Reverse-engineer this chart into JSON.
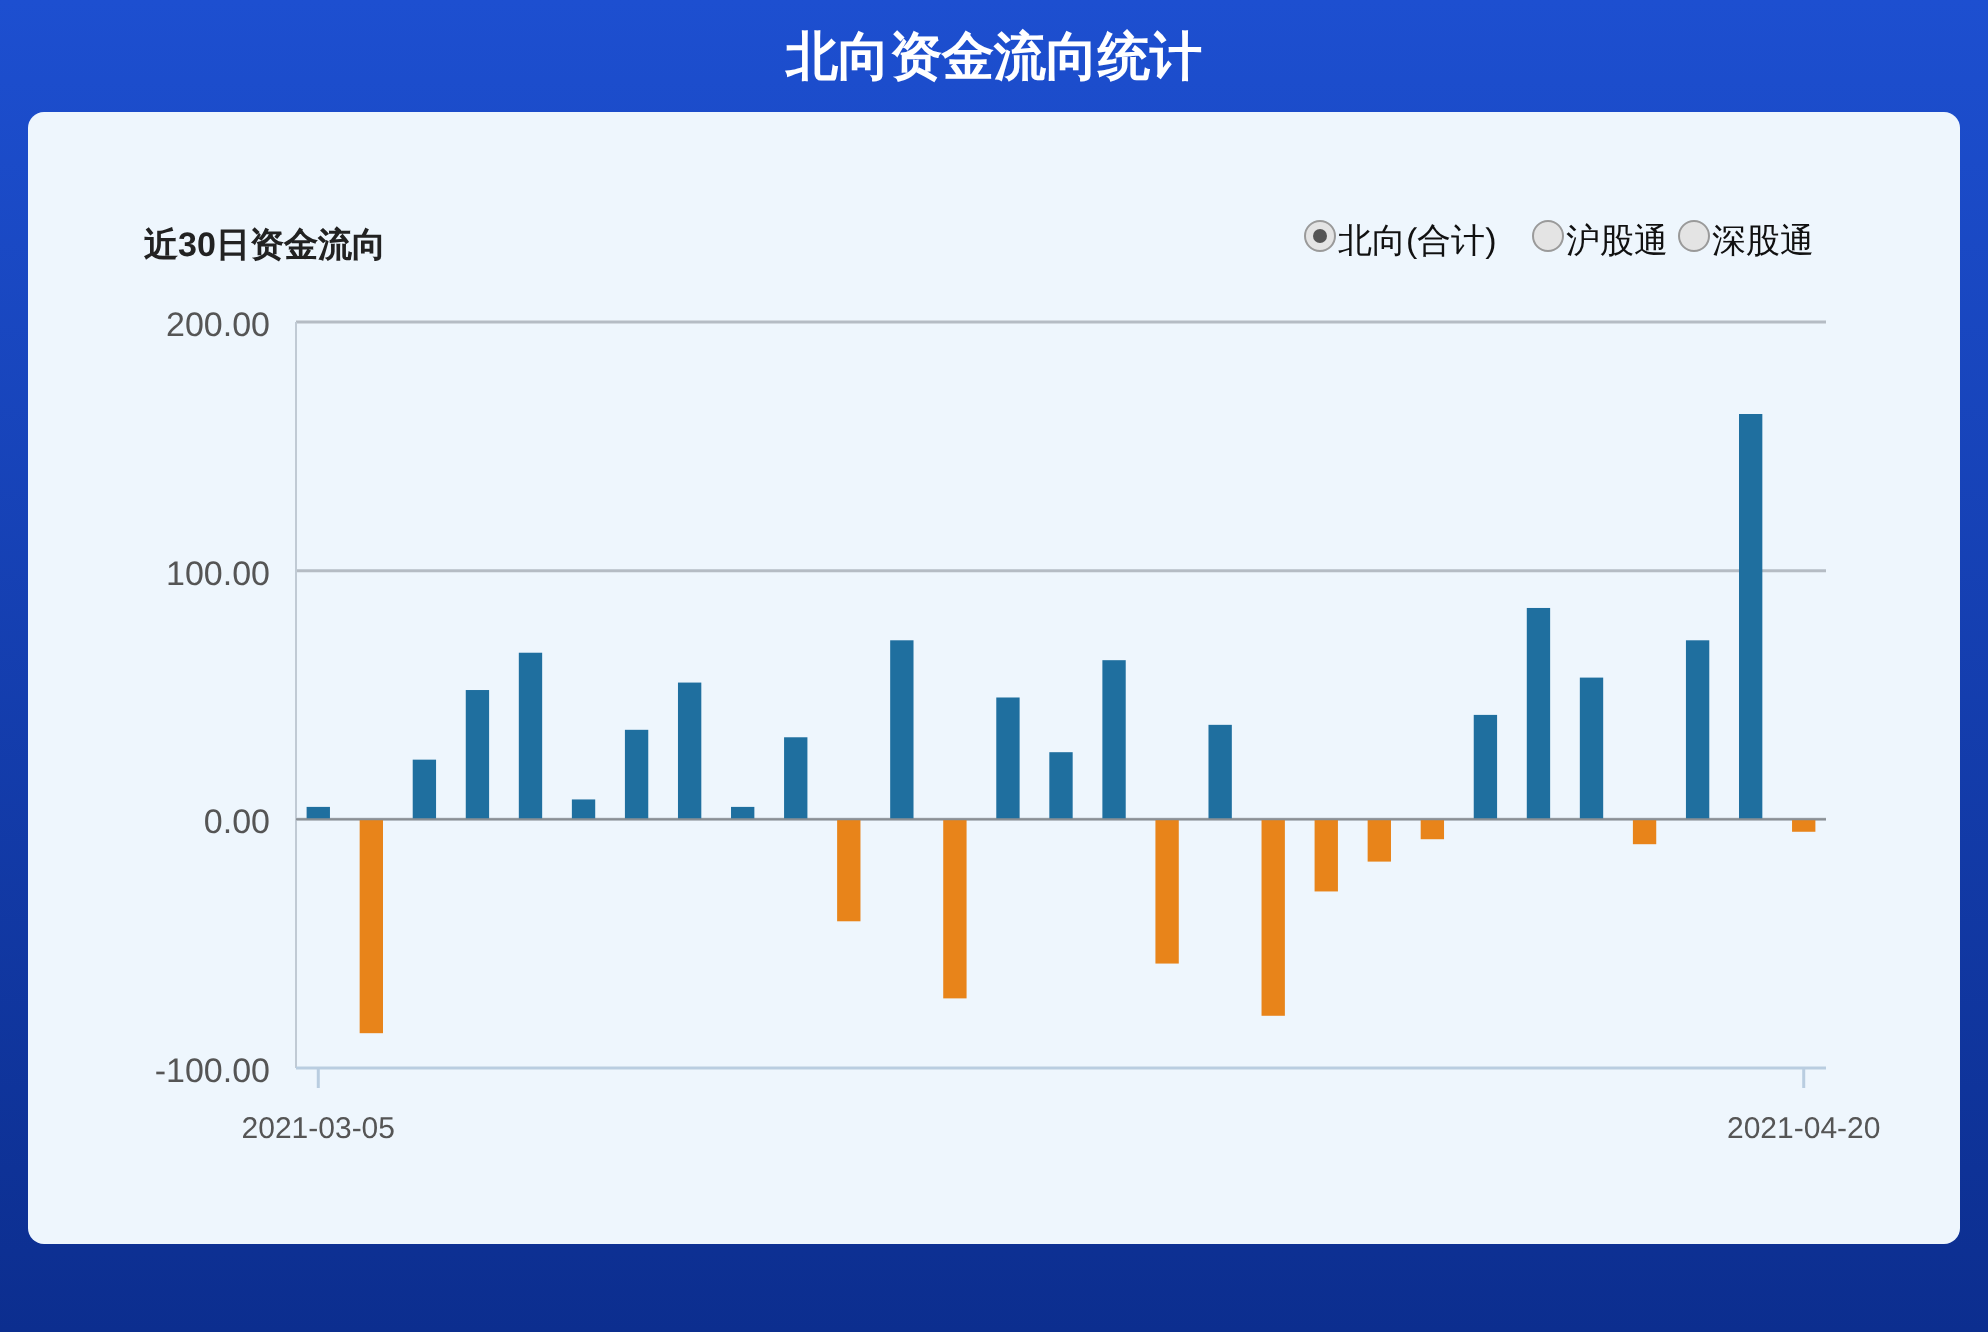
{
  "chart_data": {
    "type": "bar",
    "title": "北向资金流向统计",
    "subtitle": "近30日资金流向",
    "categories": [
      "2021-03-05",
      null,
      null,
      null,
      null,
      null,
      null,
      null,
      null,
      null,
      null,
      null,
      null,
      null,
      null,
      null,
      null,
      null,
      null,
      null,
      null,
      null,
      null,
      null,
      null,
      null,
      null,
      null,
      "2021-04-20"
    ],
    "series": [
      {
        "name": "北向(合计)",
        "values": [
          5,
          -86,
          24,
          52,
          67,
          8,
          36,
          55,
          5,
          33,
          -41,
          72,
          -72,
          49,
          27,
          64,
          -58,
          38,
          -79,
          -29,
          -17,
          -8,
          42,
          85,
          57,
          -10,
          72,
          163,
          -5
        ],
        "colors": [
          "#1f6f9f",
          "#e8841a",
          "#1f6f9f",
          "#1f6f9f",
          "#1f6f9f",
          "#1f6f9f",
          "#1f6f9f",
          "#1f6f9f",
          "#1f6f9f",
          "#1f6f9f",
          "#e8841a",
          "#1f6f9f",
          "#e8841a",
          "#1f6f9f",
          "#1f6f9f",
          "#1f6f9f",
          "#e8841a",
          "#1f6f9f",
          "#e8841a",
          "#e8841a",
          "#e8841a",
          "#e8841a",
          "#1f6f9f",
          "#1f6f9f",
          "#1f6f9f",
          "#e8841a",
          "#1f6f9f",
          "#1f6f9f",
          "#e8841a"
        ]
      }
    ],
    "ylim": [
      -100,
      200
    ],
    "yticks": [
      {
        "value": -100,
        "label": "-100.00"
      },
      {
        "value": 0,
        "label": "0.00"
      },
      {
        "value": 100,
        "label": "100.00"
      },
      {
        "value": 200,
        "label": "200.00"
      }
    ],
    "grid": "y",
    "legend": "top right",
    "annotations": [
      "沪股通",
      "深股通"
    ]
  }
}
